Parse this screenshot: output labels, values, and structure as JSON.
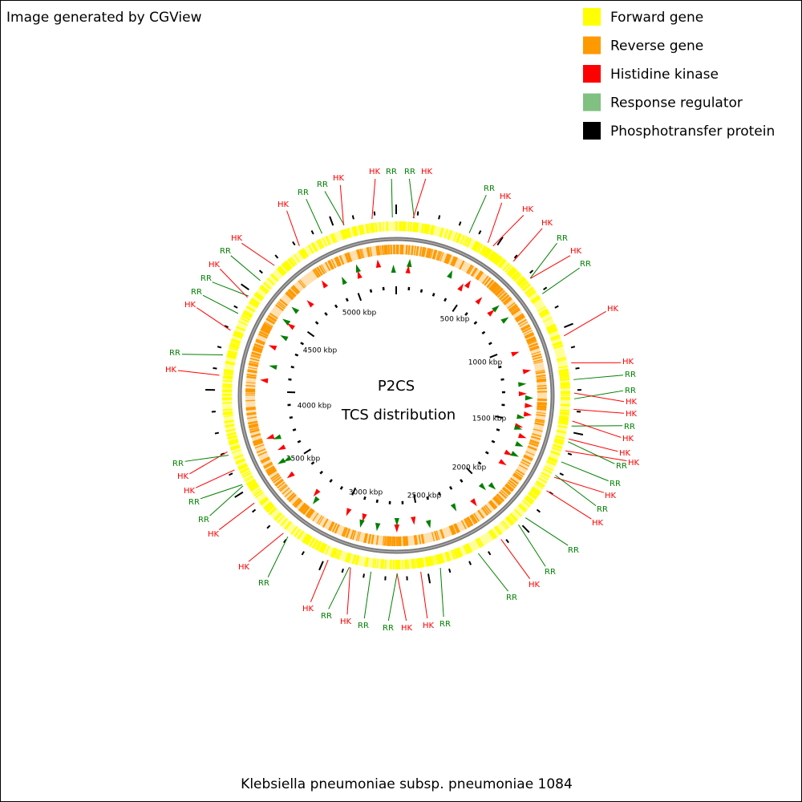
{
  "header": {
    "credit": "Image generated by CGView"
  },
  "legend": [
    "Forward gene",
    "Reverse gene",
    "Histidine kinase",
    "Response regulator",
    "Phosphotransfer protein"
  ],
  "center": {
    "line1": "P2CS",
    "line2": "TCS distribution"
  },
  "scale_labels": [
    "500 kbp",
    "1000 kbp",
    "1500 kbp",
    "2000 kbp",
    "2500 kbp",
    "3000 kbp",
    "3500 kbp",
    "4000 kbp",
    "4500 kbp",
    "5000 kbp"
  ],
  "features": [
    "HK",
    "RR",
    "RR",
    "HK",
    "RR",
    "HK",
    "HK",
    "HK",
    "RR",
    "HK",
    "RR",
    "HK",
    "HK",
    "RR",
    "RR",
    "HK",
    "HK",
    "RR",
    "HK",
    "HK",
    "HK",
    "RR",
    "RR",
    "HK",
    "RR",
    "HK",
    "RR",
    "RR",
    "HK",
    "RR",
    "RR",
    "HK",
    "HK",
    "RR",
    "RR",
    "HK",
    "RR",
    "HK",
    "RR",
    "HK",
    "HK",
    "RR",
    "RR",
    "HK",
    "HK",
    "RR",
    "HK",
    "RR",
    "HK",
    "RR",
    "RR",
    "HK",
    "RR",
    "HK",
    "HK",
    "RR",
    "RR",
    "HK"
  ],
  "footer": {
    "organism": "Klebsiella pneumoniae subsp. pneumoniae 1084"
  }
}
